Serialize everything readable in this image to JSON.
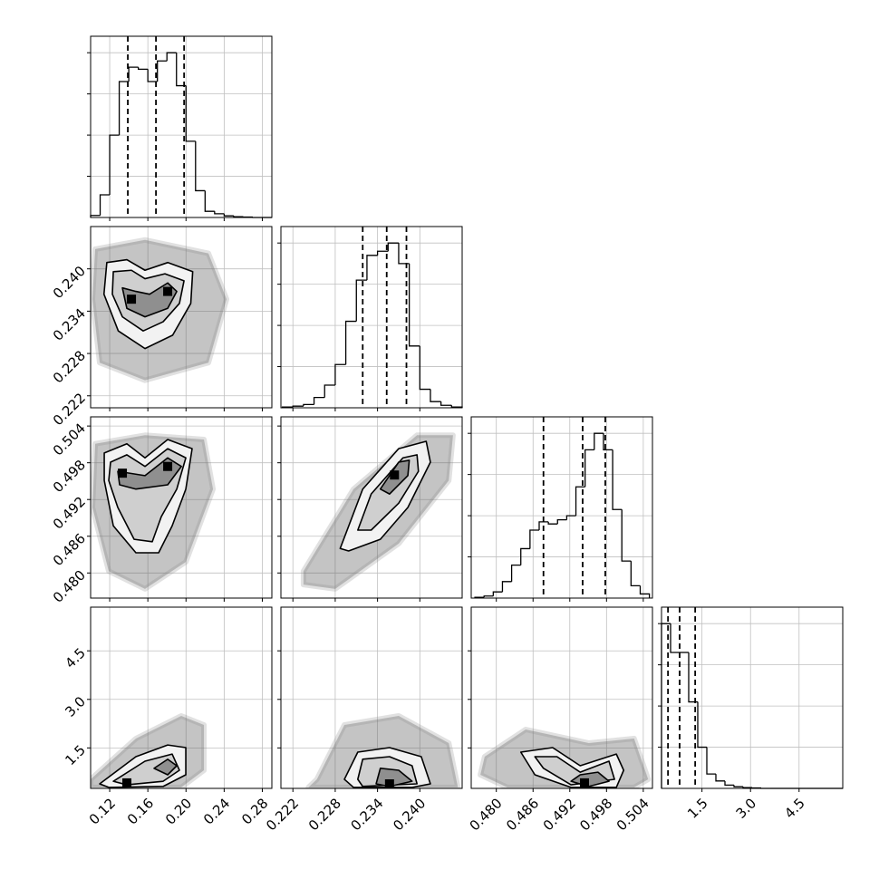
{
  "chart_data": {
    "type": "corner",
    "grid": true,
    "hist_ylim": [
      0,
      4.4
    ],
    "hist_yticks": [
      1,
      2,
      3,
      4
    ],
    "parameters": [
      {
        "lim": [
          0.1,
          0.29
        ],
        "ticks": [
          0.12,
          0.16,
          {
            "value": 0.2,
            "label": "0.20"
          },
          0.24,
          0.28
        ],
        "hist": {
          "bins": [
            0.1,
            0.11,
            0.12,
            0.13,
            0.14,
            0.15,
            0.16,
            0.17,
            0.18,
            0.19,
            0.2,
            0.21,
            0.22,
            0.23,
            0.24,
            0.25,
            0.26,
            0.27,
            0.28,
            0.29
          ],
          "values": [
            0.05,
            0.55,
            2.0,
            3.3,
            3.65,
            3.6,
            3.3,
            3.8,
            4.0,
            3.2,
            1.85,
            0.65,
            0.15,
            0.09,
            0.04,
            0.02,
            0.01,
            0,
            0
          ]
        },
        "quantiles": [
          0.139,
          0.1685,
          0.198
        ]
      },
      {
        "lim": [
          0.2203,
          0.246
        ],
        "ticks": [
          0.222,
          0.228,
          0.234,
          {
            "value": 0.24,
            "label": "0.240"
          }
        ],
        "hist": {
          "bins": [
            0.2205,
            0.222,
            0.2235,
            0.225,
            0.2265,
            0.228,
            0.2295,
            0.231,
            0.2325,
            0.234,
            0.2355,
            0.237,
            0.2385,
            0.24,
            0.2415,
            0.243,
            0.2445,
            0.246
          ],
          "values": [
            0.02,
            0.04,
            0.08,
            0.25,
            0.55,
            1.05,
            2.1,
            3.1,
            3.7,
            3.8,
            4.0,
            3.5,
            1.5,
            0.45,
            0.15,
            0.06,
            0.02
          ]
        },
        "quantiles": [
          0.2319,
          0.2353,
          0.2381
        ]
      },
      {
        "lim": [
          0.4759,
          0.5055
        ],
        "ticks": [
          {
            "value": 0.48,
            "label": "0.480"
          },
          0.486,
          0.492,
          0.498,
          0.504
        ],
        "hist": {
          "bins": [
            0.4765,
            0.478,
            0.4795,
            0.481,
            0.4825,
            0.484,
            0.4855,
            0.487,
            0.4885,
            0.49,
            0.4915,
            0.493,
            0.4945,
            0.496,
            0.4975,
            0.499,
            0.5005,
            0.502,
            0.5035,
            0.505
          ],
          "values": [
            0.02,
            0.05,
            0.15,
            0.4,
            0.8,
            1.2,
            1.65,
            1.85,
            1.8,
            1.9,
            2.0,
            2.7,
            3.6,
            4.0,
            3.6,
            2.15,
            0.9,
            0.3,
            0.1
          ]
        },
        "quantiles": [
          0.4877,
          0.4941,
          0.4978
        ]
      },
      {
        "lim": [
          0.25,
          5.85
        ],
        "ticks": [
          1.5,
          {
            "value": 3,
            "label": "3.0"
          },
          4.5
        ],
        "hist": {
          "bins": [
            0.25,
            0.53,
            0.81,
            1.09,
            1.37,
            1.65,
            1.93,
            2.21,
            2.49,
            2.77,
            3.05,
            3.33,
            3.61,
            3.89,
            4.17,
            4.45,
            4.73,
            5.01,
            5.29,
            5.57,
            5.85
          ],
          "values": [
            4.0,
            3.3,
            3.3,
            2.1,
            1.0,
            0.35,
            0.18,
            0.08,
            0.04,
            0.02,
            0.01,
            0,
            0,
            0,
            0,
            0,
            0,
            0,
            0,
            0
          ]
        },
        "quantiles": [
          0.45,
          0.81,
          1.29
        ]
      }
    ],
    "pairs": [
      {
        "x_param": 0,
        "y_param": 1,
        "cloud": {
          "x": [
            0.1048,
            0.157,
            0.2235,
            0.2425,
            0.2235,
            0.157,
            0.1095,
            0.1019
          ],
          "y": [
            0.2428,
            0.2441,
            0.2422,
            0.2357,
            0.2267,
            0.2242,
            0.2267,
            0.2357
          ]
        },
        "contours": [
          {
            "x": [
              0.117,
              0.138,
              0.157,
              0.181,
              0.207,
              0.205,
              0.186,
              0.157,
              0.129,
              0.114
            ],
            "y": [
              0.2409,
              0.2413,
              0.2398,
              0.2409,
              0.2396,
              0.2351,
              0.2306,
              0.2287,
              0.2312,
              0.2364
            ]
          },
          {
            "x": [
              0.1238,
              0.1428,
              0.157,
              0.1779,
              0.1979,
              0.1931,
              0.176,
              0.1551,
              0.1333,
              0.1228
            ],
            "y": [
              0.2396,
              0.2398,
              0.2386,
              0.2393,
              0.2383,
              0.2351,
              0.2325,
              0.2312,
              0.2332,
              0.2364
            ]
          },
          {
            "x": [
              0.1333,
              0.1475,
              0.1618,
              0.1808,
              0.1903,
              0.1808,
              0.157,
              0.138
            ],
            "y": [
              0.2373,
              0.2368,
              0.2364,
              0.238,
              0.2368,
              0.2344,
              0.2332,
              0.2344
            ]
          }
        ],
        "peaks": {
          "x": [
            0.1428,
            0.1808
          ],
          "y": [
            0.2357,
            0.2368
          ]
        }
      },
      {
        "x_param": 0,
        "y_param": 2,
        "cloud": {
          "x": [
            0.1048,
            0.157,
            0.2188,
            0.2283,
            0.1998,
            0.157,
            0.119,
            0.1019
          ],
          "y": [
            0.5011,
            0.5025,
            0.5018,
            0.4937,
            0.4818,
            0.4774,
            0.4803,
            0.4907
          ]
        },
        "contours": [
          {
            "x": [
              0.1143,
              0.138,
              0.157,
              0.1808,
              0.2064,
              0.1998,
              0.1855,
              0.1713,
              0.1475,
              0.1238,
              0.1143
            ],
            "y": [
              0.4996,
              0.5011,
              0.4988,
              0.5018,
              0.5003,
              0.4937,
              0.4877,
              0.4833,
              0.4833,
              0.4877,
              0.4951
            ]
          },
          {
            "x": [
              0.1209,
              0.138,
              0.157,
              0.1808,
              0.1998,
              0.1903,
              0.1741,
              0.1646,
              0.1456,
              0.1285,
              0.119
            ],
            "y": [
              0.4981,
              0.4993,
              0.4974,
              0.5003,
              0.4988,
              0.4937,
              0.4892,
              0.4851,
              0.4855,
              0.4907,
              0.4951
            ]
          },
          {
            "x": [
              0.1285,
              0.157,
              0.1808,
              0.1951,
              0.1808,
              0.1475,
              0.1304
            ],
            "y": [
              0.4966,
              0.4959,
              0.4988,
              0.4974,
              0.4944,
              0.4937,
              0.4944
            ]
          }
        ],
        "peaks": {
          "x": [
            0.1333,
            0.1808
          ],
          "y": [
            0.4963,
            0.4974
          ]
        }
      },
      {
        "x_param": 1,
        "y_param": 2,
        "cloud": {
          "x": [
            0.2235,
            0.2306,
            0.2396,
            0.2447,
            0.2441,
            0.237,
            0.228,
            0.2235
          ],
          "y": [
            0.4803,
            0.4937,
            0.5025,
            0.5025,
            0.4951,
            0.4848,
            0.4774,
            0.4781
          ]
        },
        "contours": [
          {
            "x": [
              0.2287,
              0.2319,
              0.237,
              0.2409,
              0.2415,
              0.2383,
              0.2344,
              0.2299
            ],
            "y": [
              0.484,
              0.4937,
              0.5003,
              0.5015,
              0.4981,
              0.4907,
              0.4855,
              0.4836
            ]
          },
          {
            "x": [
              0.2312,
              0.2331,
              0.2376,
              0.2396,
              0.2398,
              0.237,
              0.2331
            ],
            "y": [
              0.487,
              0.4929,
              0.4988,
              0.4993,
              0.4966,
              0.4914,
              0.487
            ]
          },
          {
            "x": [
              0.2344,
              0.237,
              0.2385,
              0.2383,
              0.2357
            ],
            "y": [
              0.4937,
              0.4981,
              0.4984,
              0.4959,
              0.4929
            ]
          }
        ],
        "peaks": {
          "x": [
            0.2364
          ],
          "y": [
            0.496
          ]
        }
      },
      {
        "x_param": 0,
        "y_param": 3,
        "cloud": {
          "x": [
            0.1,
            0.1475,
            0.195,
            0.2188,
            0.2188,
            0.195,
            0.1
          ],
          "y": [
            0.53,
            1.79,
            2.49,
            2.21,
            0.81,
            0.28,
            0.28
          ]
        },
        "contours": [
          {
            "x": [
              0.1095,
              0.1475,
              0.1808,
              0.1998,
              0.1998,
              0.176,
              0.119
            ],
            "y": [
              0.39,
              1.23,
              1.59,
              1.51,
              0.67,
              0.31,
              0.28
            ]
          },
          {
            "x": [
              0.1238,
              0.157,
              0.1855,
              0.1931,
              0.176,
              0.138
            ],
            "y": [
              0.47,
              1.09,
              1.31,
              0.81,
              0.47,
              0.36
            ]
          },
          {
            "x": [
              0.1665,
              0.1808,
              0.1903,
              0.1808
            ],
            "y": [
              0.87,
              1.15,
              0.95,
              0.67
            ]
          }
        ],
        "peaks": {
          "x": [
            0.138
          ],
          "y": [
            0.42
          ]
        }
      },
      {
        "x_param": 1,
        "y_param": 3,
        "cloud": {
          "x": [
            0.2254,
            0.2293,
            0.237,
            0.2441,
            0.2454,
            0.2242
          ],
          "y": [
            0.53,
            2.21,
            2.49,
            1.65,
            0.28,
            0.28
          ]
        },
        "contours": [
          {
            "x": [
              0.2293,
              0.2312,
              0.2357,
              0.2402,
              0.2415,
              0.2389,
              0.2306
            ],
            "y": [
              0.53,
              1.37,
              1.51,
              1.23,
              0.39,
              0.28,
              0.28
            ]
          },
          {
            "x": [
              0.2312,
              0.2319,
              0.2357,
              0.2389,
              0.2396,
              0.2319
            ],
            "y": [
              0.53,
              1.15,
              1.23,
              0.95,
              0.39,
              0.31
            ]
          },
          {
            "x": [
              0.2338,
              0.2344,
              0.237,
              0.2389,
              0.2357
            ],
            "y": [
              0.39,
              0.87,
              0.81,
              0.47,
              0.31
            ]
          }
        ],
        "peaks": {
          "x": [
            0.2357
          ],
          "y": [
            0.39
          ]
        }
      },
      {
        "x_param": 2,
        "y_param": 3,
        "cloud": {
          "x": [
            0.4781,
            0.4848,
            0.4951,
            0.5025,
            0.5048,
            0.5025,
            0.4818,
            0.4774
          ],
          "y": [
            1.23,
            2.07,
            1.65,
            1.79,
            0.53,
            0.28,
            0.28,
            0.67
          ]
        },
        "contours": [
          {
            "x": [
              0.484,
              0.4892,
              0.4937,
              0.4996,
              0.5008,
              0.4996,
              0.4922,
              0.4863
            ],
            "y": [
              1.37,
              1.51,
              0.95,
              1.31,
              0.81,
              0.28,
              0.28,
              0.67
            ]
          },
          {
            "x": [
              0.4863,
              0.4899,
              0.4937,
              0.4984,
              0.4993,
              0.4922,
              0.4877
            ],
            "y": [
              1.23,
              1.23,
              0.75,
              1.09,
              0.53,
              0.36,
              0.87
            ]
          },
          {
            "x": [
              0.4922,
              0.4937,
              0.4966,
              0.4984,
              0.4951
            ],
            "y": [
              0.47,
              0.67,
              0.75,
              0.47,
              0.31
            ]
          }
        ],
        "peaks": {
          "x": [
            0.4944
          ],
          "y": [
            0.42
          ]
        }
      }
    ]
  }
}
